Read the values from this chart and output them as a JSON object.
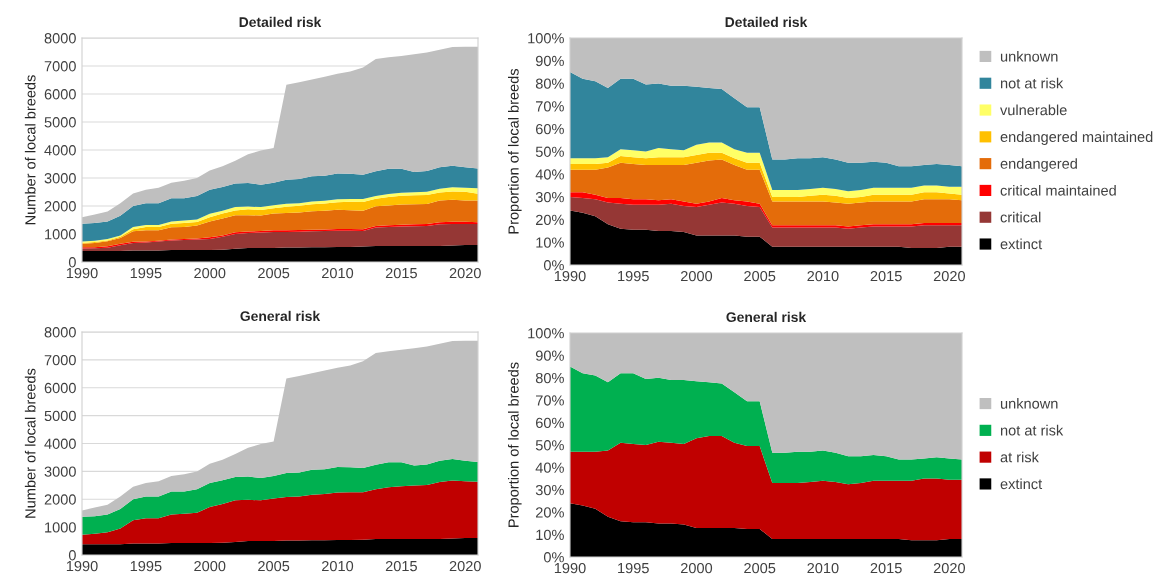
{
  "chart_data": [
    {
      "type": "area",
      "stacked": true,
      "title": "Detailed risk",
      "ylabel": "Number of local breeds",
      "x": [
        1990,
        1991,
        1992,
        1993,
        1994,
        1995,
        1996,
        1997,
        1998,
        1999,
        2000,
        2001,
        2002,
        2003,
        2004,
        2005,
        2006,
        2007,
        2008,
        2009,
        2010,
        2011,
        2012,
        2013,
        2014,
        2015,
        2016,
        2017,
        2018,
        2019,
        2020,
        2021
      ],
      "xlim": [
        1990,
        2021
      ],
      "xticks": [
        1990,
        1995,
        2000,
        2005,
        2010,
        2015,
        2020
      ],
      "ylim": [
        0,
        8000
      ],
      "yticks": [
        0,
        1000,
        2000,
        3000,
        4000,
        5000,
        6000,
        7000,
        8000
      ],
      "grid": "y",
      "legend": false,
      "series": [
        {
          "color": "#000000",
          "values": [
            390,
            390,
            390,
            390,
            410,
            410,
            410,
            430,
            430,
            430,
            430,
            440,
            470,
            500,
            500,
            500,
            520,
            520,
            530,
            530,
            540,
            540,
            550,
            570,
            570,
            570,
            570,
            570,
            570,
            590,
            610,
            610
          ]
        },
        {
          "color": "#953735",
          "values": [
            90,
            100,
            120,
            210,
            270,
            290,
            320,
            340,
            360,
            370,
            390,
            460,
            530,
            540,
            550,
            570,
            550,
            560,
            570,
            580,
            580,
            580,
            560,
            660,
            680,
            700,
            710,
            720,
            780,
            770,
            750,
            750
          ]
        },
        {
          "color": "#ff0000",
          "values": [
            50,
            40,
            50,
            50,
            40,
            30,
            30,
            30,
            30,
            40,
            60,
            50,
            60,
            50,
            60,
            60,
            60,
            60,
            50,
            50,
            60,
            60,
            60,
            60,
            60,
            60,
            70,
            70,
            70,
            80,
            80,
            60
          ]
        },
        {
          "color": "#e46c0a",
          "values": [
            120,
            150,
            180,
            210,
            380,
            400,
            370,
            440,
            430,
            460,
            570,
            600,
            610,
            580,
            550,
            600,
            620,
            630,
            660,
            670,
            690,
            670,
            660,
            700,
            710,
            720,
            710,
            710,
            780,
            780,
            760,
            780
          ]
        },
        {
          "color": "#ffc000",
          "values": [
            30,
            30,
            30,
            40,
            70,
            120,
            120,
            130,
            140,
            130,
            150,
            180,
            170,
            210,
            200,
            190,
            220,
            240,
            250,
            260,
            260,
            300,
            310,
            270,
            300,
            320,
            320,
            320,
            280,
            300,
            310,
            240
          ]
        },
        {
          "color": "#ffff66",
          "values": [
            50,
            50,
            50,
            50,
            80,
            70,
            70,
            80,
            90,
            90,
            120,
            100,
            120,
            100,
            100,
            110,
            110,
            90,
            100,
            100,
            110,
            100,
            110,
            100,
            110,
            100,
            110,
            120,
            140,
            150,
            140,
            190
          ]
        },
        {
          "color": "#31859c",
          "values": [
            640,
            630,
            630,
            700,
            750,
            780,
            780,
            830,
            800,
            840,
            860,
            850,
            840,
            840,
            800,
            800,
            860,
            860,
            900,
            890,
            920,
            900,
            870,
            880,
            900,
            860,
            720,
            740,
            760,
            770,
            730,
            710
          ]
        },
        {
          "color": "#bfbfbf",
          "values": [
            230,
            310,
            350,
            450,
            450,
            480,
            550,
            550,
            620,
            640,
            690,
            740,
            820,
            1030,
            1220,
            1240,
            3390,
            3460,
            3460,
            3540,
            3560,
            3650,
            3830,
            4010,
            3980,
            4030,
            4210,
            4230,
            4200,
            4240,
            4310,
            4350
          ]
        }
      ]
    },
    {
      "type": "area",
      "stacked": true,
      "title": "Detailed risk",
      "ylabel": "Proportion of local breeds",
      "x": [
        1990,
        1991,
        1992,
        1993,
        1994,
        1995,
        1996,
        1997,
        1998,
        1999,
        2000,
        2001,
        2002,
        2003,
        2004,
        2005,
        2006,
        2007,
        2008,
        2009,
        2010,
        2011,
        2012,
        2013,
        2014,
        2015,
        2016,
        2017,
        2018,
        2019,
        2020,
        2021
      ],
      "xlim": [
        1990,
        2021
      ],
      "xticks": [
        1990,
        1995,
        2000,
        2005,
        2010,
        2015,
        2020
      ],
      "ylim": [
        0,
        100
      ],
      "yticks": [
        {
          "value": 0,
          "label": "0%"
        },
        {
          "value": 10,
          "label": "10%"
        },
        {
          "value": 20,
          "label": "20%"
        },
        {
          "value": 30,
          "label": "30%"
        },
        {
          "value": 40,
          "label": "40%"
        },
        {
          "value": 50,
          "label": "50%"
        },
        {
          "value": 60,
          "label": "60%"
        },
        {
          "value": 70,
          "label": "70%"
        },
        {
          "value": 80,
          "label": "80%"
        },
        {
          "value": 90,
          "label": "90%"
        },
        {
          "value": 100,
          "label": "100%"
        }
      ],
      "legend": "right",
      "series": [
        {
          "name": "extinct",
          "color": "#000000",
          "values": [
            24,
            23,
            21.5,
            18,
            16,
            15.5,
            15.5,
            15,
            15,
            14.5,
            13,
            13,
            13,
            13,
            12.5,
            12.5,
            8,
            8,
            8,
            8,
            8,
            8,
            8,
            8,
            8,
            8,
            8,
            7.5,
            7.5,
            7.5,
            8,
            8
          ]
        },
        {
          "name": "critical",
          "color": "#953735",
          "values": [
            6,
            6.5,
            7.5,
            9.5,
            11,
            11,
            11,
            11.5,
            12,
            11.5,
            12.5,
            13.5,
            14.5,
            14,
            13.5,
            13,
            8.5,
            8.5,
            8.5,
            8.5,
            8.5,
            8.5,
            8,
            8.5,
            9,
            9,
            9,
            9.5,
            10,
            10,
            9.5,
            9.5
          ]
        },
        {
          "name": "critical maintained",
          "color": "#ff0000",
          "values": [
            2,
            2.5,
            2,
            2,
            2.5,
            2.5,
            2.5,
            2,
            2,
            2,
            1.5,
            1.5,
            2,
            1.5,
            2,
            1.5,
            1,
            1,
            1,
            1,
            1,
            1,
            1,
            1,
            1,
            1,
            1,
            1,
            1,
            1,
            1,
            1
          ]
        },
        {
          "name": "endangered",
          "color": "#e46c0a",
          "values": [
            10,
            10,
            11,
            13.5,
            15.5,
            15.5,
            15,
            15.5,
            15,
            16,
            18,
            18,
            17,
            15.5,
            14,
            15,
            10.5,
            10.5,
            10.5,
            10.5,
            10.5,
            10,
            10,
            10,
            10,
            10,
            10,
            10,
            10.5,
            10.5,
            10.5,
            10
          ]
        },
        {
          "name": "endangered maintained",
          "color": "#ffc000",
          "values": [
            2.5,
            2.5,
            2.5,
            2,
            3,
            3,
            3,
            3.5,
            3.5,
            3.5,
            3.5,
            3.5,
            3,
            3,
            3,
            3,
            2,
            2,
            2,
            2.5,
            3,
            3,
            2.5,
            2.5,
            3,
            3,
            3,
            3,
            3,
            3,
            2.5,
            2.5
          ]
        },
        {
          "name": "vulnerable",
          "color": "#ffff66",
          "values": [
            2.5,
            2.5,
            2.5,
            2.5,
            3,
            3,
            3,
            4,
            3.5,
            3,
            4.5,
            4.5,
            4.5,
            4,
            4.5,
            4.5,
            3,
            3,
            3,
            3,
            3,
            3,
            3,
            3,
            3,
            3,
            3,
            3,
            3,
            3,
            3,
            3.5
          ]
        },
        {
          "name": "not at risk",
          "color": "#31859c",
          "values": [
            38,
            35,
            34,
            30.5,
            31,
            31.5,
            29.5,
            28.5,
            28,
            28.5,
            25.5,
            24,
            23.5,
            22.5,
            20,
            20,
            13.5,
            13.5,
            14,
            13.5,
            13.5,
            13,
            12.5,
            12,
            11.5,
            11,
            9.5,
            9.5,
            9,
            9.5,
            9.5,
            9
          ]
        },
        {
          "name": "unknown",
          "color": "#bfbfbf",
          "values": [
            15,
            18,
            19,
            22,
            18,
            18,
            20.5,
            20,
            21,
            21,
            21.5,
            22,
            22.5,
            26.5,
            30.5,
            30.5,
            53.5,
            53.5,
            53,
            53,
            52.5,
            53.5,
            55,
            55,
            54.5,
            55,
            56.5,
            56.5,
            56,
            55.5,
            56,
            56.5
          ]
        }
      ]
    },
    {
      "type": "area",
      "stacked": true,
      "title": "General risk",
      "ylabel": "Number of local breeds",
      "x": [
        1990,
        1991,
        1992,
        1993,
        1994,
        1995,
        1996,
        1997,
        1998,
        1999,
        2000,
        2001,
        2002,
        2003,
        2004,
        2005,
        2006,
        2007,
        2008,
        2009,
        2010,
        2011,
        2012,
        2013,
        2014,
        2015,
        2016,
        2017,
        2018,
        2019,
        2020,
        2021
      ],
      "xlim": [
        1990,
        2021
      ],
      "xticks": [
        1990,
        1995,
        2000,
        2005,
        2010,
        2015,
        2020
      ],
      "ylim": [
        0,
        8000
      ],
      "yticks": [
        0,
        1000,
        2000,
        3000,
        4000,
        5000,
        6000,
        7000,
        8000
      ],
      "grid": "y",
      "legend": false,
      "series": [
        {
          "color": "#000000",
          "values": [
            390,
            390,
            390,
            390,
            410,
            410,
            410,
            430,
            430,
            430,
            430,
            440,
            470,
            500,
            500,
            500,
            520,
            520,
            530,
            530,
            540,
            540,
            550,
            570,
            570,
            570,
            570,
            570,
            570,
            590,
            610,
            610
          ]
        },
        {
          "color": "#c00000",
          "values": [
            340,
            370,
            430,
            560,
            840,
            910,
            910,
            1020,
            1050,
            1090,
            1290,
            1390,
            1490,
            1480,
            1460,
            1530,
            1560,
            1580,
            1630,
            1660,
            1700,
            1710,
            1700,
            1790,
            1860,
            1900,
            1920,
            1940,
            2050,
            2080,
            2040,
            2020
          ]
        },
        {
          "color": "#00b050",
          "values": [
            640,
            630,
            630,
            700,
            750,
            780,
            780,
            830,
            800,
            840,
            860,
            850,
            840,
            840,
            800,
            800,
            860,
            860,
            900,
            890,
            920,
            900,
            870,
            880,
            900,
            860,
            720,
            740,
            760,
            770,
            730,
            710
          ]
        },
        {
          "color": "#bfbfbf",
          "values": [
            230,
            310,
            350,
            450,
            450,
            480,
            550,
            550,
            620,
            640,
            690,
            740,
            820,
            1030,
            1220,
            1240,
            3390,
            3460,
            3460,
            3540,
            3560,
            3650,
            3830,
            4010,
            3980,
            4030,
            4210,
            4230,
            4200,
            4240,
            4310,
            4350
          ]
        }
      ]
    },
    {
      "type": "area",
      "stacked": true,
      "title": "General risk",
      "ylabel": "Proportion of local breeds",
      "x": [
        1990,
        1991,
        1992,
        1993,
        1994,
        1995,
        1996,
        1997,
        1998,
        1999,
        2000,
        2001,
        2002,
        2003,
        2004,
        2005,
        2006,
        2007,
        2008,
        2009,
        2010,
        2011,
        2012,
        2013,
        2014,
        2015,
        2016,
        2017,
        2018,
        2019,
        2020,
        2021
      ],
      "xlim": [
        1990,
        2021
      ],
      "xticks": [
        1990,
        1995,
        2000,
        2005,
        2010,
        2015,
        2020
      ],
      "ylim": [
        0,
        100
      ],
      "yticks": [
        {
          "value": 0,
          "label": "0%"
        },
        {
          "value": 10,
          "label": "10%"
        },
        {
          "value": 20,
          "label": "20%"
        },
        {
          "value": 30,
          "label": "30%"
        },
        {
          "value": 40,
          "label": "40%"
        },
        {
          "value": 50,
          "label": "50%"
        },
        {
          "value": 60,
          "label": "60%"
        },
        {
          "value": 70,
          "label": "70%"
        },
        {
          "value": 80,
          "label": "80%"
        },
        {
          "value": 90,
          "label": "90%"
        },
        {
          "value": 100,
          "label": "100%"
        }
      ],
      "legend": "right",
      "series": [
        {
          "name": "extinct",
          "color": "#000000",
          "values": [
            24,
            23,
            21.5,
            18,
            16,
            15.5,
            15.5,
            15,
            15,
            14.5,
            13,
            13,
            13,
            13,
            12.5,
            12.5,
            8,
            8,
            8,
            8,
            8,
            8,
            8,
            8,
            8,
            8,
            8,
            7.5,
            7.5,
            7.5,
            8,
            8
          ]
        },
        {
          "name": "at risk",
          "color": "#c00000",
          "values": [
            23,
            24,
            25.5,
            29.5,
            35,
            35,
            34.5,
            36.5,
            36,
            36,
            40,
            41,
            41,
            38,
            37,
            37,
            25,
            25,
            25,
            25.5,
            26,
            25.5,
            24.5,
            25,
            26,
            26,
            26,
            26.5,
            27.5,
            27.5,
            26.5,
            26.5
          ]
        },
        {
          "name": "not at risk",
          "color": "#00b050",
          "values": [
            38,
            35,
            34,
            30.5,
            31,
            31.5,
            29.5,
            28.5,
            28,
            28.5,
            25.5,
            24,
            23.5,
            22.5,
            20,
            20,
            13.5,
            13.5,
            14,
            13.5,
            13.5,
            13,
            12.5,
            12,
            11.5,
            11,
            9.5,
            9.5,
            9,
            9.5,
            9.5,
            9
          ]
        },
        {
          "name": "unknown",
          "color": "#bfbfbf",
          "values": [
            15,
            18,
            19,
            22,
            18,
            18,
            20.5,
            20,
            21,
            21,
            21.5,
            22,
            22.5,
            26.5,
            30.5,
            30.5,
            53.5,
            53.5,
            53,
            53,
            52.5,
            53.5,
            55,
            55,
            54.5,
            55,
            56.5,
            56.5,
            56,
            55.5,
            56,
            56.5
          ]
        }
      ]
    }
  ]
}
